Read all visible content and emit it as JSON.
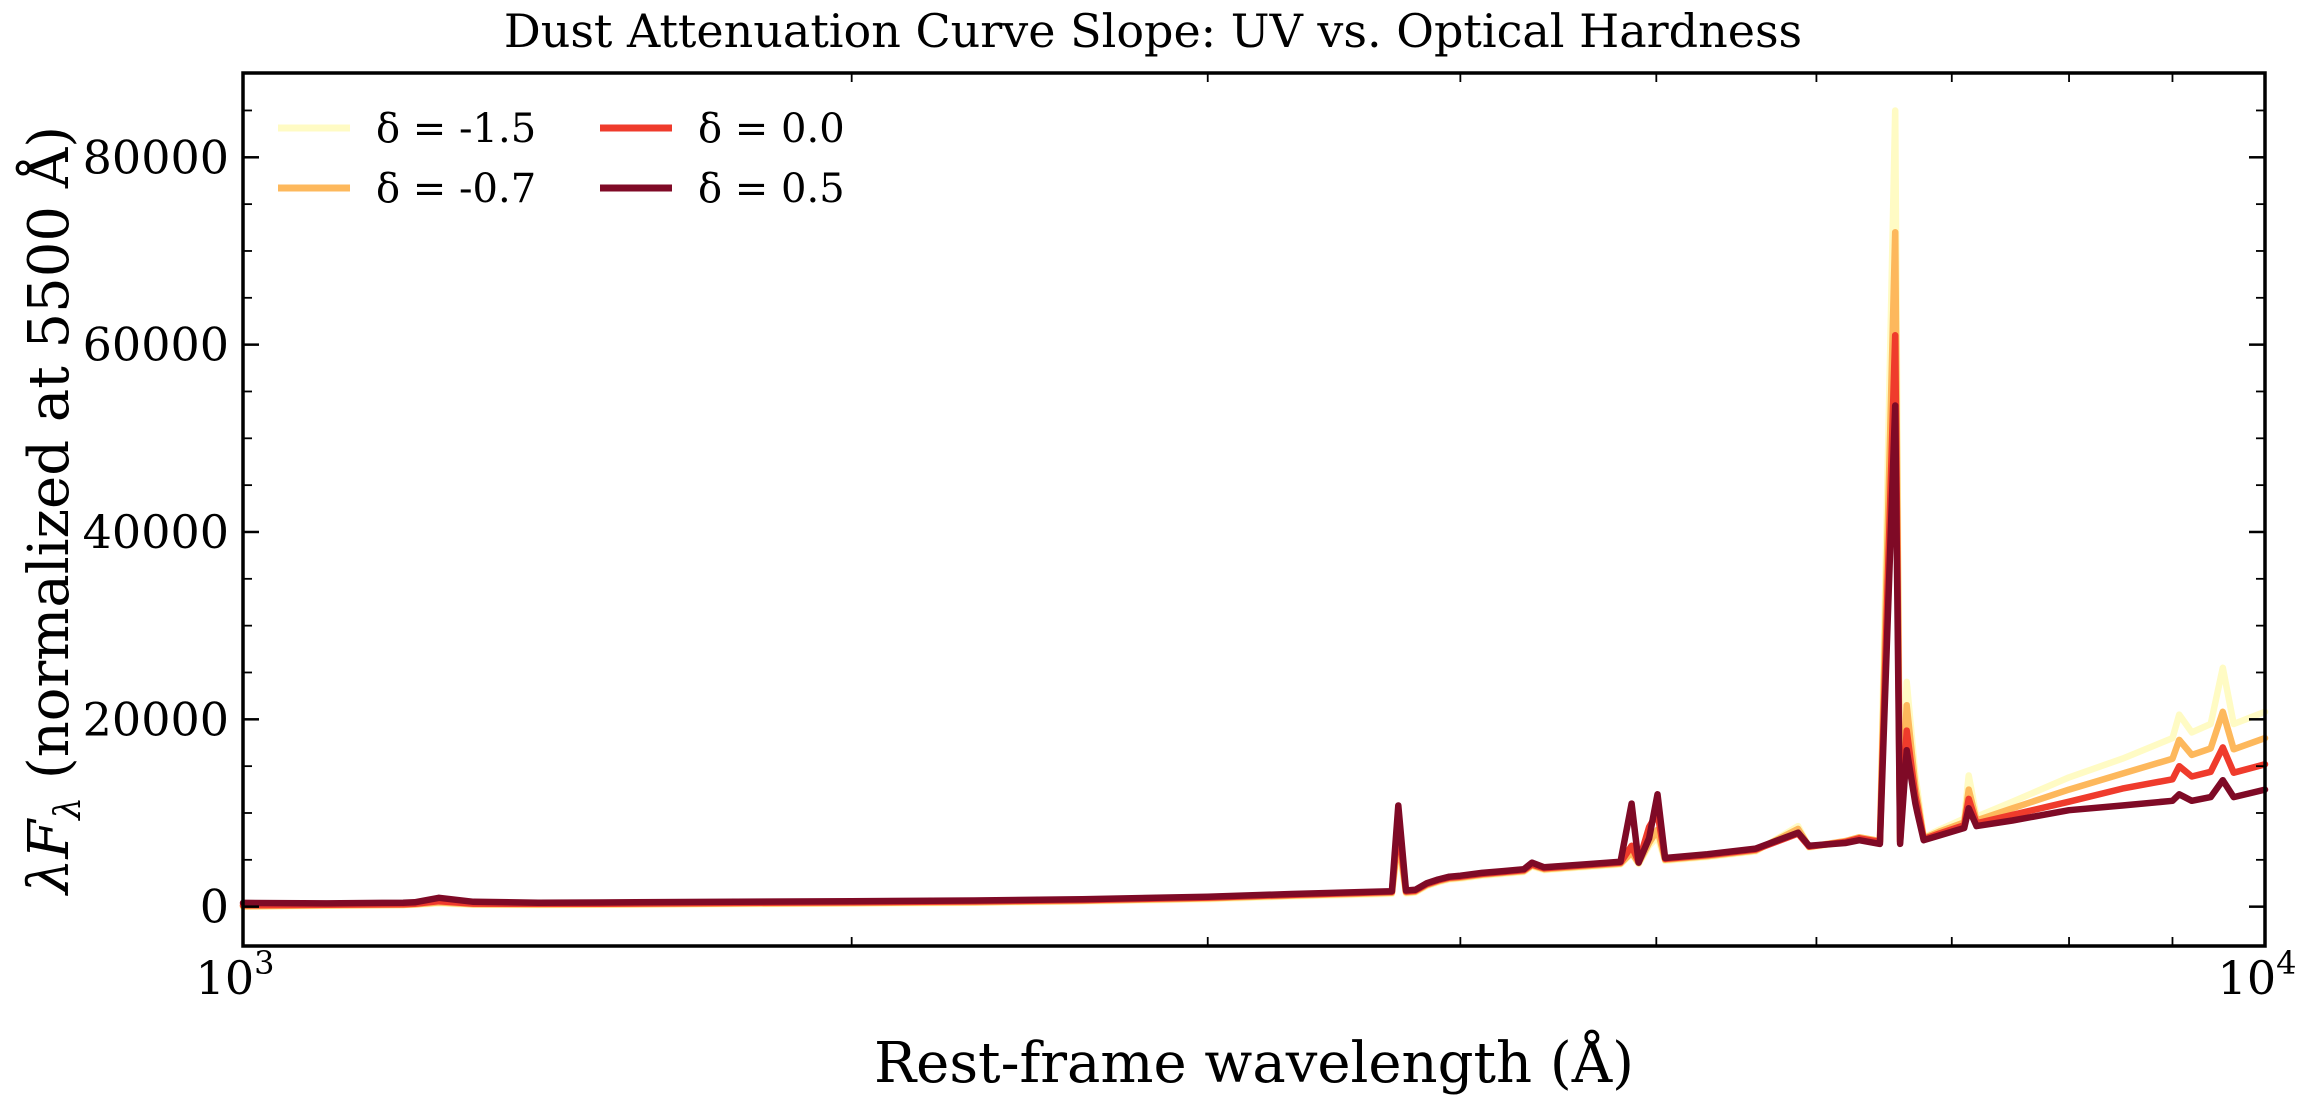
{
  "chart_data": {
    "type": "line",
    "title": "Dust Attenuation Curve Slope: UV vs. Optical Hardness",
    "xlabel": "Rest-frame wavelength (Å)",
    "ylabel_main": "λF",
    "ylabel_sub": "λ",
    "ylabel_rest": " (normalized at 5500 Å)",
    "x_scale": "log",
    "xlim": [
      1000,
      10000
    ],
    "ylim": [
      -4200,
      89000
    ],
    "grid": false,
    "legend_position": "top-left",
    "x_ticks": [
      {
        "value": 1000,
        "base": "10",
        "exp": "3"
      },
      {
        "value": 10000,
        "base": "10",
        "exp": "4"
      }
    ],
    "y_ticks": [
      {
        "value": 0,
        "label": "0"
      },
      {
        "value": 20000,
        "label": "20000"
      },
      {
        "value": 40000,
        "label": "40000"
      },
      {
        "value": 60000,
        "label": "60000"
      },
      {
        "value": 80000,
        "label": "80000"
      }
    ],
    "x": [
      1000,
      1100,
      1200,
      1216,
      1250,
      1300,
      1400,
      1500,
      1700,
      2000,
      2300,
      2600,
      3000,
      3300,
      3600,
      3700,
      3727,
      3760,
      3800,
      3850,
      3900,
      3950,
      4000,
      4100,
      4200,
      4300,
      4340,
      4400,
      4600,
      4800,
      4861,
      4900,
      4959,
      5007,
      5050,
      5300,
      5600,
      5876,
      5950,
      6200,
      6300,
      6450,
      6563,
      6600,
      6650,
      6716,
      6731,
      6780,
      6900,
      7100,
      7136,
      7200,
      7500,
      8000,
      8500,
      9000,
      9069,
      9200,
      9400,
      9531,
      9650,
      10000
    ],
    "series": [
      {
        "name": "-1.5",
        "color": "#fffbc4",
        "values": [
          0,
          100,
          150,
          200,
          350,
          200,
          180,
          200,
          260,
          330,
          420,
          550,
          800,
          1100,
          1300,
          1380,
          6500,
          1420,
          1500,
          2200,
          2600,
          2900,
          3000,
          3300,
          3500,
          3700,
          4300,
          3900,
          4200,
          4500,
          5700,
          4550,
          6500,
          7500,
          4900,
          5300,
          5900,
          8600,
          6300,
          6900,
          7400,
          7000,
          85000,
          7000,
          24000,
          14000,
          12500,
          7400,
          8200,
          9400,
          14000,
          9600,
          11200,
          13800,
          15800,
          18000,
          20500,
          18600,
          19500,
          25500,
          19500,
          20800
        ]
      },
      {
        "name": "-0.7",
        "color": "#fdb85c",
        "values": [
          50,
          130,
          190,
          240,
          450,
          260,
          230,
          250,
          320,
          390,
          480,
          620,
          880,
          1180,
          1400,
          1480,
          7500,
          1520,
          1600,
          2300,
          2700,
          3000,
          3100,
          3400,
          3600,
          3800,
          4400,
          4000,
          4300,
          4600,
          5800,
          4650,
          6800,
          8200,
          5000,
          5400,
          6000,
          8300,
          6400,
          7000,
          7400,
          7000,
          72000,
          7000,
          21500,
          12800,
          11500,
          7300,
          8000,
          9000,
          12500,
          9200,
          10500,
          12500,
          14200,
          15800,
          17800,
          16200,
          16900,
          20800,
          16800,
          18000
        ]
      },
      {
        "name": "0.0",
        "color": "#ef3b2c",
        "values": [
          150,
          200,
          260,
          310,
          580,
          330,
          300,
          320,
          390,
          460,
          560,
          700,
          970,
          1260,
          1500,
          1580,
          9000,
          1620,
          1700,
          2400,
          2800,
          3100,
          3200,
          3500,
          3700,
          3900,
          4500,
          4100,
          4400,
          4700,
          6500,
          4750,
          8500,
          10000,
          5100,
          5500,
          6100,
          7800,
          6400,
          6900,
          7300,
          6900,
          61000,
          6900,
          18800,
          11800,
          10800,
          7200,
          7800,
          8700,
          11500,
          8900,
          9800,
          11200,
          12600,
          13600,
          15000,
          13900,
          14400,
          17000,
          14300,
          15200
        ]
      },
      {
        "name": "0.5",
        "color": "#7f0a26",
        "values": [
          400,
          350,
          420,
          470,
          950,
          520,
          420,
          440,
          510,
          570,
          660,
          800,
          1060,
          1350,
          1580,
          1650,
          10800,
          1720,
          1800,
          2500,
          2900,
          3200,
          3300,
          3600,
          3800,
          4000,
          4700,
          4200,
          4500,
          4800,
          11000,
          4700,
          7300,
          12000,
          5200,
          5600,
          6200,
          7900,
          6500,
          6800,
          7100,
          6700,
          53500,
          6700,
          16700,
          11000,
          10000,
          7100,
          7600,
          8400,
          10500,
          8600,
          9200,
          10300,
          10800,
          11300,
          12000,
          11300,
          11700,
          13500,
          11700,
          12500
        ]
      }
    ],
    "legend": {
      "symbol": "δ",
      "labels": [
        "δ = -1.5",
        "δ = -0.7",
        "δ = 0.0",
        "δ = 0.5"
      ]
    }
  }
}
